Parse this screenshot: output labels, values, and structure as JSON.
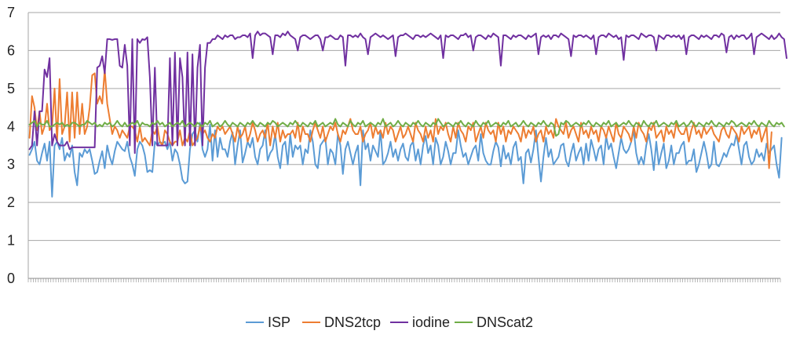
{
  "chart_data": {
    "type": "line",
    "title": "",
    "xlabel": "",
    "ylabel": "",
    "ylim": [
      0,
      7
    ],
    "yticks": [
      "0",
      "1",
      "2",
      "3",
      "4",
      "5",
      "6",
      "7"
    ],
    "grid": true,
    "legend_position": "bottom",
    "n_points": 300,
    "series": [
      {
        "name": "ISP",
        "color": "#5b9bd5",
        "values": [
          3.25,
          3.4,
          3.6,
          3.1,
          3.0,
          3.3,
          3.55,
          3.1,
          3.6,
          2.15,
          3.5,
          3.6,
          3.4,
          3.7,
          3.1,
          3.3,
          3.2,
          3.5,
          2.8,
          2.45,
          3.3,
          3.2,
          3.4,
          3.3,
          3.4,
          3.1,
          2.75,
          2.8,
          3.1,
          3.35,
          2.9,
          3.5,
          3.2,
          3.0,
          3.35,
          3.6,
          3.5,
          3.4,
          3.35,
          3.6,
          3.2,
          3.0,
          2.7,
          3.4,
          3.6,
          3.5,
          3.25,
          2.8,
          2.85,
          2.8,
          3.6,
          3.5,
          3.6,
          3.55,
          3.6,
          3.4,
          3.6,
          3.1,
          3.4,
          3.3,
          3.0,
          2.6,
          2.5,
          2.55,
          3.4,
          3.8,
          3.9,
          3.6,
          4.1,
          3.4,
          3.2,
          3.4,
          4.05,
          3.1,
          3.9,
          3.2,
          3.7,
          3.4,
          3.4,
          3.2,
          3.6,
          3.85,
          3.0,
          3.5,
          3.9,
          3.05,
          3.3,
          3.6,
          3.45,
          3.7,
          3.2,
          3.0,
          3.4,
          3.5,
          3.9,
          3.1,
          3.3,
          3.4,
          3.8,
          3.2,
          2.9,
          3.5,
          3.6,
          3.0,
          3.8,
          3.2,
          3.5,
          3.4,
          3.5,
          3.0,
          3.4,
          3.3,
          3.9,
          3.6,
          3.0,
          2.9,
          3.5,
          3.6,
          3.7,
          3.0,
          3.4,
          3.3,
          3.0,
          3.8,
          3.5,
          2.75,
          3.4,
          3.6,
          3.3,
          3.0,
          3.3,
          3.5,
          2.45,
          3.9,
          3.4,
          3.55,
          3.1,
          3.5,
          3.35,
          3.2,
          3.9,
          3.0,
          3.1,
          3.3,
          3.6,
          3.2,
          3.4,
          3.1,
          3.4,
          3.55,
          3.2,
          3.1,
          3.5,
          3.6,
          3.1,
          3.4,
          3.0,
          3.5,
          3.75,
          3.3,
          3.5,
          3.0,
          3.7,
          3.5,
          3.0,
          3.2,
          3.6,
          3.35,
          3.0,
          3.3,
          3.3,
          3.9,
          3.5,
          3.2,
          3.3,
          3.0,
          3.2,
          3.4,
          3.5,
          3.1,
          3.8,
          3.3,
          3.1,
          3.0,
          3.0,
          3.35,
          3.6,
          3.45,
          2.95,
          3.5,
          3.15,
          3.3,
          3.0,
          3.45,
          3.6,
          3.1,
          3.2,
          2.5,
          3.3,
          3.4,
          3.05,
          3.4,
          3.9,
          3.2,
          2.55,
          3.2,
          3.7,
          3.2,
          3.4,
          3.0,
          3.1,
          3.2,
          3.5,
          3.55,
          3.1,
          2.95,
          3.3,
          3.55,
          3.1,
          3.3,
          3.45,
          3.0,
          3.55,
          3.1,
          3.65,
          3.4,
          3.1,
          3.4,
          3.5,
          3.0,
          3.75,
          3.4,
          3.55,
          3.2,
          2.9,
          3.3,
          3.7,
          3.4,
          3.3,
          3.4,
          3.6,
          3.9,
          3.3,
          3.0,
          3.2,
          3.0,
          3.5,
          3.8,
          3.4,
          2.85,
          3.6,
          3.0,
          3.3,
          3.55,
          2.9,
          3.1,
          3.5,
          3.0,
          3.3,
          3.3,
          3.5,
          3.6,
          3.0,
          3.1,
          3.1,
          3.4,
          2.8,
          3.0,
          3.3,
          3.6,
          3.3,
          2.9,
          3.0,
          3.6,
          3.0,
          2.95,
          3.1,
          3.3,
          3.2,
          3.4,
          3.55,
          3.5,
          3.8,
          3.4,
          3.0,
          3.5,
          3.6,
          3.2,
          3.0,
          3.1,
          3.4,
          3.2,
          3.3,
          3.1,
          3.55,
          3.3,
          3.4,
          3.5,
          3.0,
          2.65,
          3.7
        ]
      },
      {
        "name": "DNS2tcp",
        "color": "#ed7d31",
        "values": [
          3.7,
          4.8,
          4.5,
          3.9,
          4.4,
          3.8,
          4.0,
          4.6,
          3.9,
          4.0,
          5.0,
          3.6,
          5.25,
          3.8,
          4.0,
          4.9,
          3.6,
          4.9,
          3.7,
          4.9,
          3.8,
          4.6,
          3.8,
          4.0,
          4.5,
          5.35,
          5.4,
          4.6,
          4.8,
          4.6,
          5.5,
          4.6,
          4.2,
          3.8,
          4.0,
          3.9,
          3.7,
          3.9,
          3.8,
          3.7,
          4.0,
          4.0,
          3.9,
          3.6,
          4.0,
          3.6,
          3.7,
          3.6,
          3.5,
          3.9,
          3.8,
          4.0,
          3.6,
          3.5,
          3.9,
          3.8,
          3.6,
          3.5,
          3.6,
          3.6,
          3.9,
          3.5,
          3.7,
          3.6,
          3.9,
          3.5,
          3.6,
          3.7,
          4.0,
          3.8,
          3.9,
          3.7,
          3.6,
          3.8,
          3.7,
          4.0,
          3.9,
          4.0,
          3.8,
          3.9,
          4.0,
          3.8,
          3.6,
          4.0,
          3.7,
          3.8,
          4.0,
          3.6,
          3.8,
          4.1,
          3.9,
          3.6,
          3.8,
          3.9,
          3.7,
          4.1,
          3.5,
          4.0,
          3.7,
          4.1,
          3.6,
          3.9,
          3.7,
          3.8,
          3.8,
          3.9,
          3.7,
          4.1,
          3.6,
          4.0,
          3.8,
          3.8,
          3.6,
          3.9,
          4.1,
          3.9,
          3.7,
          4.0,
          3.6,
          3.8,
          4.0,
          3.9,
          4.1,
          3.8,
          3.6,
          3.9,
          3.8,
          4.0,
          4.2,
          3.9,
          3.8,
          3.8,
          4.0,
          3.6,
          3.8,
          3.9,
          4.1,
          3.7,
          4.0,
          3.8,
          3.9,
          3.7,
          4.1,
          3.8,
          4.0,
          3.9,
          3.6,
          3.8,
          4.0,
          3.7,
          3.8,
          4.0,
          3.8,
          3.6,
          4.1,
          3.9,
          3.8,
          3.6,
          4.0,
          3.7,
          3.9,
          3.6,
          4.2,
          3.8,
          4.0,
          3.9,
          4.1,
          3.8,
          3.6,
          4.0,
          3.7,
          4.1,
          3.9,
          3.8,
          3.6,
          4.0,
          3.9,
          4.1,
          3.6,
          3.8,
          4.0,
          3.7,
          4.1,
          3.9,
          3.8,
          3.9,
          3.6,
          4.1,
          3.8,
          4.0,
          3.6,
          3.9,
          3.8,
          4.0,
          3.9,
          3.8,
          3.6,
          4.0,
          3.7,
          3.9,
          3.8,
          4.0,
          3.6,
          3.8,
          3.9,
          3.6,
          4.0,
          3.8,
          3.9,
          3.7,
          4.2,
          4.0,
          3.9,
          3.8,
          4.1,
          3.7,
          3.9,
          4.0,
          3.8,
          3.6,
          4.1,
          3.8,
          3.9,
          3.7,
          4.0,
          3.8,
          3.9,
          3.6,
          4.0,
          3.9,
          3.7,
          4.0,
          3.8,
          3.6,
          4.1,
          3.8,
          3.7,
          4.0,
          3.9,
          3.8,
          3.6,
          4.0,
          3.7,
          4.1,
          3.9,
          3.8,
          3.6,
          4.0,
          3.9,
          4.1,
          3.7,
          3.8,
          3.9,
          3.6,
          4.0,
          3.8,
          3.9,
          3.7,
          4.1,
          3.9,
          3.8,
          3.8,
          4.0,
          3.6,
          3.9,
          4.1,
          3.8,
          3.9,
          3.7,
          4.0,
          3.8,
          3.9,
          4.0,
          3.8,
          3.7,
          3.6,
          3.9,
          4.0,
          3.8,
          3.7,
          4.0,
          3.9,
          3.8,
          3.6,
          4.0,
          3.8,
          3.9,
          4.0,
          3.7,
          3.9,
          3.8,
          4.0,
          3.6,
          3.8,
          4.0,
          2.9,
          3.85
        ]
      },
      {
        "name": "iodine",
        "color": "#7030a0",
        "values": [
          3.4,
          3.5,
          4.4,
          3.5,
          4.4,
          4.4,
          5.5,
          5.3,
          5.8,
          3.5,
          3.8,
          3.6,
          3.5,
          3.5,
          3.5,
          3.6,
          3.4,
          3.45,
          3.45,
          3.45,
          3.45,
          3.45,
          3.45,
          3.45,
          3.45,
          3.45,
          3.45,
          5.55,
          5.6,
          5.85,
          5.4,
          6.3,
          6.3,
          6.28,
          6.3,
          6.3,
          5.6,
          5.55,
          6.15,
          5.6,
          3.5,
          6.3,
          3.3,
          6.3,
          6.2,
          6.3,
          6.28,
          6.35,
          5.3,
          3.5,
          5.55,
          3.5,
          3.5,
          3.5,
          3.5,
          3.5,
          5.8,
          3.5,
          5.95,
          3.5,
          5.8,
          5.3,
          3.5,
          5.95,
          3.5,
          5.9,
          3.5,
          5.55,
          6.15,
          3.5,
          5.55,
          6.2,
          6.2,
          6.3,
          6.3,
          6.4,
          6.35,
          6.3,
          6.4,
          6.35,
          6.4,
          6.4,
          6.3,
          6.35,
          6.35,
          6.4,
          6.4,
          6.35,
          6.45,
          5.8,
          6.4,
          6.5,
          6.4,
          6.45,
          6.45,
          6.4,
          6.35,
          5.9,
          6.4,
          6.4,
          6.35,
          6.45,
          6.4,
          6.5,
          6.4,
          6.35,
          6.3,
          6.0,
          6.35,
          6.4,
          6.4,
          6.35,
          6.3,
          6.35,
          6.4,
          6.4,
          6.3,
          6.0,
          6.35,
          6.35,
          6.4,
          6.35,
          6.3,
          6.3,
          6.4,
          6.35,
          5.6,
          6.4,
          6.4,
          6.35,
          6.4,
          6.35,
          6.45,
          6.35,
          6.3,
          5.9,
          6.35,
          6.4,
          6.45,
          6.4,
          6.35,
          6.4,
          6.35,
          6.3,
          6.35,
          6.4,
          5.85,
          6.35,
          6.4,
          6.4,
          6.45,
          6.4,
          6.35,
          6.3,
          6.4,
          6.4,
          6.35,
          6.4,
          6.35,
          6.4,
          6.45,
          6.4,
          6.35,
          6.3,
          6.4,
          5.8,
          6.4,
          6.35,
          6.4,
          6.4,
          6.35,
          6.3,
          6.4,
          6.4,
          6.45,
          6.35,
          6.4,
          6.0,
          6.35,
          6.4,
          6.4,
          6.35,
          6.3,
          6.4,
          6.35,
          6.45,
          6.4,
          6.35,
          5.6,
          6.4,
          6.4,
          6.35,
          6.3,
          6.4,
          6.35,
          6.4,
          6.4,
          6.35,
          6.3,
          6.4,
          6.35,
          6.4,
          6.45,
          5.9,
          6.35,
          6.4,
          6.35,
          6.4,
          6.3,
          6.4,
          6.4,
          6.35,
          6.45,
          6.4,
          6.35,
          6.3,
          5.85,
          6.4,
          6.35,
          6.4,
          6.4,
          6.35,
          6.4,
          6.35,
          6.3,
          6.4,
          5.9,
          6.35,
          6.4,
          6.4,
          6.35,
          6.45,
          6.4,
          6.35,
          6.4,
          6.3,
          6.35,
          5.75,
          6.4,
          6.35,
          6.4,
          6.4,
          6.35,
          6.3,
          6.45,
          6.4,
          6.35,
          6.4,
          6.4,
          6.35,
          6.0,
          6.4,
          6.35,
          6.3,
          6.4,
          6.4,
          6.35,
          6.4,
          6.35,
          6.4,
          6.3,
          6.4,
          5.9,
          6.35,
          6.4,
          6.4,
          6.35,
          6.3,
          6.4,
          6.35,
          6.4,
          6.35,
          6.3,
          6.4,
          6.4,
          6.35,
          6.45,
          6.4,
          5.95,
          6.35,
          6.4,
          6.3,
          6.4,
          6.35,
          6.4,
          6.4,
          6.3,
          6.35,
          6.45,
          5.9,
          6.35,
          6.4,
          6.45,
          6.4,
          6.35,
          6.3,
          6.4,
          6.3,
          6.35,
          6.45,
          6.35,
          6.3,
          5.8
        ]
      },
      {
        "name": "DNScat2",
        "color": "#70ad47",
        "values": [
          4.05,
          4.1,
          4.15,
          4.0,
          4.1,
          4.05,
          4.05,
          4.15,
          4.0,
          4.0,
          4.05,
          4.1,
          4.05,
          4.1,
          4.0,
          4.05,
          4.0,
          4.1,
          4.1,
          4.05,
          4.0,
          4.05,
          4.05,
          4.15,
          4.1,
          4.05,
          4.1,
          4.0,
          4.05,
          4.0,
          4.1,
          4.05,
          4.1,
          4.0,
          4.05,
          4.15,
          4.05,
          4.0,
          4.1,
          4.0,
          4.05,
          4.1,
          4.05,
          4.15,
          4.0,
          4.1,
          4.05,
          4.05,
          4.0,
          4.1,
          4.05,
          4.15,
          4.05,
          4.1,
          4.0,
          4.05,
          4.1,
          4.0,
          4.05,
          4.1,
          4.05,
          4.15,
          4.0,
          4.05,
          4.1,
          4.05,
          4.0,
          4.1,
          4.05,
          4.0,
          4.1,
          4.05,
          4.15,
          4.0,
          4.05,
          4.1,
          4.0,
          4.05,
          4.15,
          4.05,
          4.0,
          4.1,
          4.05,
          4.0,
          4.1,
          4.05,
          4.0,
          4.1,
          4.05,
          4.15,
          4.05,
          4.0,
          4.1,
          4.05,
          4.0,
          4.1,
          4.05,
          4.15,
          4.1,
          4.0,
          4.05,
          4.1,
          4.05,
          4.0,
          4.1,
          4.05,
          4.15,
          4.05,
          4.0,
          4.1,
          4.05,
          4.0,
          4.1,
          4.05,
          4.15,
          4.0,
          4.05,
          4.1,
          4.0,
          4.05,
          4.1,
          4.05,
          4.2,
          4.05,
          4.0,
          4.1,
          4.05,
          4.0,
          4.15,
          4.05,
          4.0,
          4.1,
          4.05,
          4.15,
          4.0,
          4.05,
          4.1,
          4.05,
          4.0,
          4.1,
          4.05,
          4.2,
          4.0,
          4.05,
          4.1,
          4.0,
          4.05,
          4.15,
          4.05,
          4.0,
          4.1,
          4.05,
          4.0,
          4.1,
          4.05,
          4.15,
          4.05,
          4.0,
          4.1,
          4.05,
          4.0,
          4.1,
          4.05,
          4.2,
          4.1,
          4.0,
          4.05,
          4.1,
          4.05,
          4.0,
          4.1,
          4.05,
          4.15,
          4.05,
          4.0,
          4.1,
          4.05,
          4.0,
          4.15,
          4.05,
          4.0,
          4.1,
          4.05,
          4.15,
          4.0,
          4.05,
          4.1,
          4.05,
          4.0,
          4.1,
          4.05,
          4.15,
          4.0,
          4.05,
          4.1,
          4.0,
          4.05,
          4.15,
          4.05,
          4.0,
          4.1,
          4.05,
          4.0,
          4.1,
          4.05,
          4.15,
          4.05,
          4.0,
          4.1,
          4.05,
          3.75,
          3.8,
          4.1,
          4.05,
          4.15,
          4.1,
          4.0,
          4.05,
          4.1,
          4.05,
          4.0,
          4.1,
          4.05,
          4.15,
          4.05,
          4.0,
          4.1,
          4.05,
          4.0,
          4.1,
          4.05,
          4.15,
          4.0,
          4.05,
          4.1,
          4.0,
          4.05,
          4.1,
          4.05,
          4.15,
          4.05,
          4.0,
          4.1,
          4.05,
          4.0,
          4.15,
          4.05,
          4.0,
          4.1,
          4.05,
          4.15,
          4.0,
          4.05,
          4.1,
          4.05,
          4.0,
          4.1,
          4.05,
          4.15,
          4.0,
          4.05,
          4.1,
          4.0,
          4.05,
          4.15,
          4.05,
          4.0,
          4.1,
          4.05,
          4.0,
          4.1,
          4.05,
          4.15,
          4.05,
          4.0,
          4.1,
          4.05,
          4.0,
          4.1,
          4.05,
          4.15,
          4.1,
          4.0,
          4.05,
          4.1,
          4.05,
          4.0,
          4.1,
          4.05,
          4.15,
          4.05,
          4.0,
          4.1,
          4.05,
          4.0,
          4.15,
          4.05,
          4.0,
          4.1,
          4.05,
          4.1,
          4.0
        ]
      }
    ]
  }
}
